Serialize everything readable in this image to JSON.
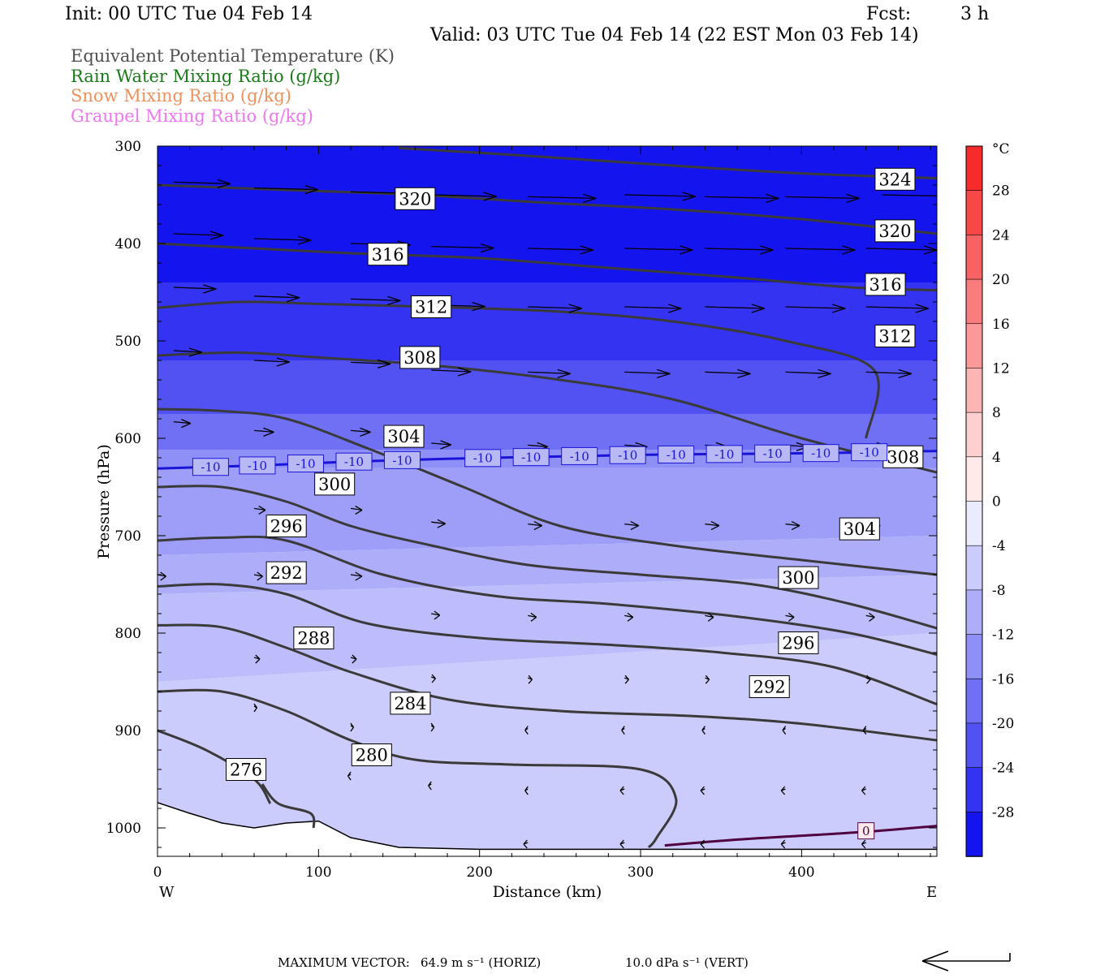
{
  "header": {
    "init": "Init: 00 UTC Tue 04 Feb 14",
    "fcst_label": "Fcst:",
    "fcst_value": "3 h",
    "valid": "Valid: 03 UTC Tue 04 Feb 14 (22 EST Mon 03 Feb 14)"
  },
  "fields": [
    {
      "label": "Equivalent Potential Temperature (K)",
      "color": "#505050"
    },
    {
      "label": "Rain Water Mixing Ratio (g/kg)",
      "color": "#1a7a1a"
    },
    {
      "label": "Snow Mixing Ratio (g/kg)",
      "color": "#f0905a"
    },
    {
      "label": "Graupel Mixing Ratio (g/kg)",
      "color": "#ee77ee"
    }
  ],
  "footer": {
    "max_vector": "MAXIMUM VECTOR:",
    "horiz": "64.9 m s⁻¹ (HORIZ)",
    "vert": "10.0 dPa s⁻¹ (VERT)"
  },
  "chart_data": {
    "type": "cross-section contour",
    "xlabel": "Distance (km)",
    "ylabel": "Pressure (hPa)",
    "xlim": [
      0,
      484
    ],
    "ylim": [
      1030,
      300
    ],
    "x_ticks": [
      0,
      100,
      200,
      300,
      400
    ],
    "y_ticks": [
      300,
      400,
      500,
      600,
      700,
      800,
      900,
      1000
    ],
    "x_end_labels": {
      "left": "W",
      "right": "E"
    },
    "colorbar": {
      "unit": "°C",
      "ticks": [
        28,
        24,
        20,
        16,
        12,
        8,
        4,
        0,
        -4,
        -8,
        -12,
        -16,
        -20,
        -24,
        -28
      ],
      "range": [
        -32,
        32
      ]
    },
    "temperature_fill_bands": [
      {
        "x": [
          0,
          484
        ],
        "p_top": [
          300,
          300
        ],
        "p_bot": [
          440,
          440
        ],
        "temp": -30
      },
      {
        "x": [
          0,
          484
        ],
        "p_top": [
          440,
          440
        ],
        "p_bot": [
          520,
          520
        ],
        "temp": -26
      },
      {
        "x": [
          0,
          484
        ],
        "p_top": [
          520,
          520
        ],
        "p_bot": [
          575,
          575
        ],
        "temp": -22
      },
      {
        "x": [
          0,
          484
        ],
        "p_top": [
          575,
          575
        ],
        "p_bot": [
          612,
          612
        ],
        "temp": -18
      },
      {
        "x": [
          0,
          484
        ],
        "p_top": [
          612,
          612
        ],
        "p_bot": [
          630,
          630
        ],
        "temp": -14
      },
      {
        "x": [
          0,
          484
        ],
        "p_top": [
          630,
          630
        ],
        "p_bot": [
          720,
          700
        ],
        "temp": -12
      },
      {
        "x": [
          0,
          484
        ],
        "p_top": [
          720,
          700
        ],
        "p_bot": [
          760,
          740
        ],
        "temp": -10
      },
      {
        "x": [
          0,
          484
        ],
        "p_top": [
          760,
          740
        ],
        "p_bot": [
          850,
          800
        ],
        "temp": -8
      },
      {
        "x": [
          0,
          484
        ],
        "p_top": [
          850,
          800
        ],
        "p_bot": [
          1030,
          1030
        ],
        "temp": -6
      }
    ],
    "theta_e_contours": [
      {
        "level": 276,
        "label_x": 55,
        "label_p": 940,
        "x": [
          65,
          75,
          95,
          97
        ],
        "p": [
          955,
          975,
          985,
          1000
        ]
      },
      {
        "level": 276,
        "label": false,
        "x": [
          0,
          30,
          60,
          70
        ],
        "p": [
          900,
          920,
          950,
          975
        ]
      },
      {
        "level": 280,
        "label_x": 133,
        "label_p": 925,
        "x": [
          0,
          40,
          80,
          120,
          160,
          220,
          300,
          322,
          310,
          305
        ],
        "p": [
          860,
          860,
          880,
          910,
          930,
          935,
          940,
          970,
          1010,
          1020
        ]
      },
      {
        "level": 284,
        "label_x": 157,
        "label_p": 872,
        "x": [
          0,
          40,
          80,
          120,
          180,
          250,
          330,
          400,
          484
        ],
        "p": [
          792,
          794,
          815,
          840,
          868,
          880,
          885,
          893,
          910
        ]
      },
      {
        "level": 288,
        "label_x": 97,
        "label_p": 805,
        "x": [
          0,
          40,
          80,
          130,
          200,
          280,
          350,
          420,
          484
        ],
        "p": [
          752,
          750,
          760,
          790,
          805,
          812,
          820,
          835,
          873
        ]
      },
      {
        "level": 292,
        "label_x": 80,
        "label_p": 738,
        "x": [
          0,
          40,
          80,
          140,
          210,
          280,
          360,
          430,
          484
        ],
        "p": [
          705,
          702,
          705,
          740,
          762,
          770,
          783,
          800,
          822
        ]
      },
      {
        "level": 296,
        "label_x": 80,
        "label_p": 690,
        "x": [
          0,
          40,
          80,
          120,
          170,
          230,
          300,
          370,
          430,
          484
        ],
        "p": [
          650,
          650,
          665,
          690,
          710,
          730,
          740,
          750,
          770,
          795
        ]
      },
      {
        "level": 300,
        "label_x": 110,
        "label_p": 647,
        "x": [
          0,
          40,
          80,
          130,
          190,
          250,
          320,
          400,
          484
        ],
        "p": [
          570,
          572,
          580,
          610,
          650,
          690,
          710,
          725,
          740
        ]
      },
      {
        "level": 304,
        "label_x": 153,
        "label_p": 598,
        "x": [
          0,
          50,
          100,
          170,
          250,
          320,
          400,
          484
        ],
        "p": [
          515,
          512,
          517,
          525,
          540,
          560,
          600,
          635
        ]
      },
      {
        "level": 308,
        "label_x": 163,
        "label_p": 517,
        "x": [
          0,
          50,
          100,
          170,
          250,
          320,
          390,
          445,
          440
        ],
        "p": [
          466,
          460,
          462,
          465,
          470,
          480,
          500,
          530,
          600
        ]
      },
      {
        "level": 312,
        "label_x": 170,
        "label_p": 465,
        "x": [
          0,
          60,
          120,
          200,
          280,
          360,
          430,
          484
        ],
        "p": [
          400,
          405,
          410,
          415,
          425,
          435,
          445,
          448
        ]
      },
      {
        "level": 316,
        "label_x": 143,
        "label_p": 411,
        "x": [
          0,
          80,
          160,
          240,
          320,
          400,
          484
        ],
        "p": [
          340,
          345,
          350,
          358,
          365,
          375,
          390
        ]
      },
      {
        "level": 320,
        "label_x": 160,
        "label_p": 354,
        "x": [
          150,
          230,
          320,
          400,
          484
        ],
        "p": [
          302,
          310,
          320,
          328,
          333
        ]
      }
    ],
    "extra_contour_labels": [
      {
        "text": "324",
        "x": 458,
        "p": 334
      },
      {
        "text": "320",
        "x": 458,
        "p": 387
      },
      {
        "text": "316",
        "x": 452,
        "p": 442
      },
      {
        "text": "312",
        "x": 458,
        "p": 495
      },
      {
        "text": "308",
        "x": 463,
        "p": 619
      },
      {
        "text": "304",
        "x": 436,
        "p": 693
      },
      {
        "text": "300",
        "x": 398,
        "p": 743
      },
      {
        "text": "296",
        "x": 398,
        "p": 810
      },
      {
        "text": "292",
        "x": 380,
        "p": 855
      }
    ],
    "isotherm_minus10": {
      "level": -10,
      "color": "#1a14d8",
      "x": [
        0,
        60,
        120,
        180,
        240,
        300,
        360,
        420,
        484
      ],
      "p": [
        631,
        628,
        624,
        621,
        619,
        617,
        616,
        615,
        613
      ],
      "label_x": [
        33,
        62,
        92,
        122,
        152,
        202,
        232,
        262,
        292,
        322,
        352,
        382,
        412,
        442
      ],
      "label_text": "-10"
    },
    "isotherm_zero": {
      "level": 0,
      "color": "#500040",
      "x": [
        315,
        360,
        400,
        440,
        484
      ],
      "p": [
        1018,
        1012,
        1008,
        1004,
        998
      ],
      "label_x": 440,
      "label_p": 1003,
      "label_text": "0"
    },
    "terrain_surface_p": {
      "x": [
        0,
        20,
        40,
        60,
        80,
        100,
        120,
        150,
        200,
        300,
        400,
        484
      ],
      "p": [
        974,
        985,
        995,
        1000,
        995,
        993,
        1010,
        1020,
        1022,
        1022,
        1022,
        1022
      ]
    },
    "wind_vectors": [
      {
        "x": 10,
        "p": 337,
        "u": 40
      },
      {
        "x": 60,
        "p": 343,
        "u": 45
      },
      {
        "x": 120,
        "p": 347,
        "u": 44
      },
      {
        "x": 170,
        "p": 350,
        "u": 46
      },
      {
        "x": 230,
        "p": 352,
        "u": 48
      },
      {
        "x": 290,
        "p": 350,
        "u": 50
      },
      {
        "x": 340,
        "p": 352,
        "u": 52
      },
      {
        "x": 390,
        "p": 352,
        "u": 52
      },
      {
        "x": 450,
        "p": 350,
        "u": 54
      },
      {
        "x": 10,
        "p": 390,
        "u": 35
      },
      {
        "x": 60,
        "p": 395,
        "u": 40
      },
      {
        "x": 120,
        "p": 400,
        "u": 42
      },
      {
        "x": 170,
        "p": 403,
        "u": 44
      },
      {
        "x": 230,
        "p": 405,
        "u": 46
      },
      {
        "x": 290,
        "p": 405,
        "u": 48
      },
      {
        "x": 340,
        "p": 405,
        "u": 48
      },
      {
        "x": 390,
        "p": 405,
        "u": 49
      },
      {
        "x": 440,
        "p": 405,
        "u": 50
      },
      {
        "x": 10,
        "p": 445,
        "u": 30
      },
      {
        "x": 60,
        "p": 454,
        "u": 32
      },
      {
        "x": 120,
        "p": 457,
        "u": 35
      },
      {
        "x": 170,
        "p": 463,
        "u": 38
      },
      {
        "x": 230,
        "p": 465,
        "u": 38
      },
      {
        "x": 290,
        "p": 465,
        "u": 40
      },
      {
        "x": 340,
        "p": 465,
        "u": 42
      },
      {
        "x": 390,
        "p": 465,
        "u": 42
      },
      {
        "x": 440,
        "p": 465,
        "u": 44
      },
      {
        "x": 10,
        "p": 510,
        "u": 20
      },
      {
        "x": 60,
        "p": 520,
        "u": 25
      },
      {
        "x": 120,
        "p": 522,
        "u": 28
      },
      {
        "x": 170,
        "p": 530,
        "u": 28
      },
      {
        "x": 230,
        "p": 532,
        "u": 30
      },
      {
        "x": 290,
        "p": 532,
        "u": 32
      },
      {
        "x": 340,
        "p": 532,
        "u": 32
      },
      {
        "x": 390,
        "p": 532,
        "u": 32
      },
      {
        "x": 440,
        "p": 532,
        "u": 32
      },
      {
        "x": 10,
        "p": 583,
        "u": 12
      },
      {
        "x": 60,
        "p": 592,
        "u": 14
      },
      {
        "x": 120,
        "p": 592,
        "u": 14
      },
      {
        "x": 170,
        "p": 605,
        "u": 14
      },
      {
        "x": 230,
        "p": 607,
        "u": 14
      },
      {
        "x": 290,
        "p": 607,
        "u": 16
      },
      {
        "x": 340,
        "p": 607,
        "u": 16
      },
      {
        "x": 390,
        "p": 607,
        "u": 16
      },
      {
        "x": 440,
        "p": 607,
        "u": 16
      },
      {
        "x": 60,
        "p": 672,
        "u": 8
      },
      {
        "x": 120,
        "p": 672,
        "u": 8
      },
      {
        "x": 170,
        "p": 686,
        "u": 10
      },
      {
        "x": 230,
        "p": 688,
        "u": 10
      },
      {
        "x": 290,
        "p": 688,
        "u": 10
      },
      {
        "x": 340,
        "p": 688,
        "u": 10
      },
      {
        "x": 390,
        "p": 688,
        "u": 10
      },
      {
        "x": 440,
        "p": 688,
        "u": 10
      },
      {
        "x": 0,
        "p": 740,
        "u": 6
      },
      {
        "x": 60,
        "p": 740,
        "u": 6
      },
      {
        "x": 120,
        "p": 740,
        "u": 8
      },
      {
        "x": 170,
        "p": 780,
        "u": 6
      },
      {
        "x": 230,
        "p": 782,
        "u": 6
      },
      {
        "x": 290,
        "p": 782,
        "u": 6
      },
      {
        "x": 340,
        "p": 782,
        "u": 6
      },
      {
        "x": 390,
        "p": 782,
        "u": 6
      },
      {
        "x": 440,
        "p": 782,
        "u": 6
      },
      {
        "x": 60,
        "p": 825,
        "u": 4
      },
      {
        "x": 120,
        "p": 825,
        "u": 4
      },
      {
        "x": 170,
        "p": 845,
        "u": 3
      },
      {
        "x": 230,
        "p": 846,
        "u": 3
      },
      {
        "x": 290,
        "p": 846,
        "u": 3
      },
      {
        "x": 340,
        "p": 846,
        "u": 3
      },
      {
        "x": 390,
        "p": 846,
        "u": 3
      },
      {
        "x": 440,
        "p": 846,
        "u": 3
      },
      {
        "x": 60,
        "p": 875,
        "u": 2
      },
      {
        "x": 120,
        "p": 895,
        "u": 2
      },
      {
        "x": 170,
        "p": 895,
        "u": 2
      },
      {
        "x": 230,
        "p": 898,
        "u": -2
      },
      {
        "x": 290,
        "p": 898,
        "u": -2
      },
      {
        "x": 340,
        "p": 898,
        "u": -2
      },
      {
        "x": 390,
        "p": 898,
        "u": -2
      },
      {
        "x": 440,
        "p": 898,
        "u": -2
      },
      {
        "x": 120,
        "p": 945,
        "u": -2
      },
      {
        "x": 170,
        "p": 955,
        "u": -2
      },
      {
        "x": 230,
        "p": 960,
        "u": -2
      },
      {
        "x": 290,
        "p": 960,
        "u": -3
      },
      {
        "x": 340,
        "p": 960,
        "u": -3
      },
      {
        "x": 390,
        "p": 960,
        "u": -3
      },
      {
        "x": 440,
        "p": 960,
        "u": -3
      },
      {
        "x": 230,
        "p": 1015,
        "u": -3
      },
      {
        "x": 290,
        "p": 1015,
        "u": -3
      },
      {
        "x": 340,
        "p": 1015,
        "u": -3
      },
      {
        "x": 390,
        "p": 1015,
        "u": -3
      },
      {
        "x": 440,
        "p": 1015,
        "u": -3
      }
    ],
    "reference_vector_direction": "westward"
  }
}
